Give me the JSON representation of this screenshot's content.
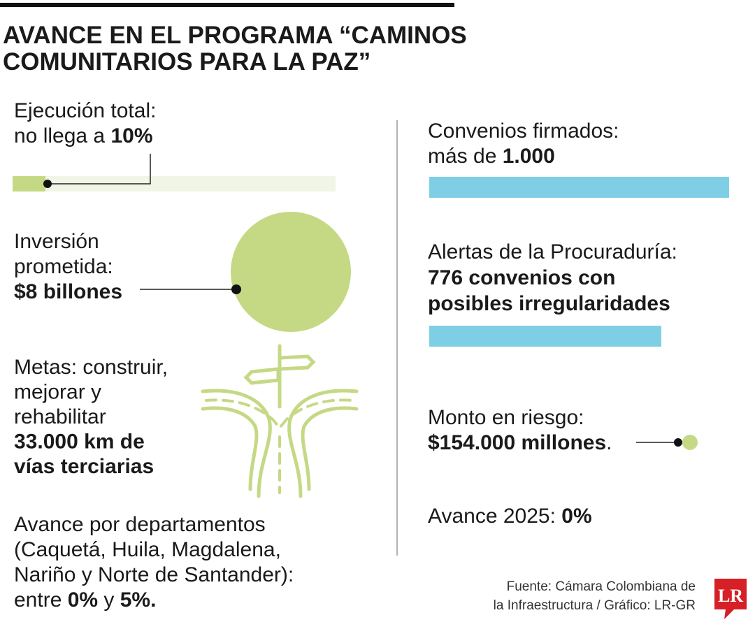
{
  "title": [
    "AVANCE EN EL PROGRAMA “CAMINOS",
    "COMUNITARIOS PARA LA PAZ”"
  ],
  "blocks": [
    {
      "lines": [
        [
          {
            "text": "Ejecución total:"
          }
        ],
        [
          {
            "text": "no llega a "
          },
          {
            "text": "10%",
            "bold": true
          }
        ]
      ]
    },
    {
      "lines": [
        [
          {
            "text": "Inversión"
          }
        ],
        [
          {
            "text": "prometida:"
          }
        ],
        [
          {
            "text": "$8 billones",
            "bold": true
          }
        ]
      ]
    },
    {
      "lines": [
        [
          {
            "text": "Metas: construir,"
          }
        ],
        [
          {
            "text": "mejorar y"
          }
        ],
        [
          {
            "text": "rehabilitar"
          }
        ],
        [
          {
            "text": "33.000 km de",
            "bold": true
          }
        ],
        [
          {
            "text": "vías terciarias",
            "bold": true
          }
        ]
      ]
    },
    {
      "lines": [
        [
          {
            "text": "Avance por departamentos"
          }
        ],
        [
          {
            "text": "(Caquetá, Huila, Magdalena,"
          }
        ],
        [
          {
            "text": "Nariño y Norte de Santander):"
          }
        ],
        [
          {
            "text": "entre "
          },
          {
            "text": "0%",
            "bold": true
          },
          {
            "text": " y "
          },
          {
            "text": "5%.",
            "bold": true
          }
        ]
      ]
    },
    {
      "lines": [
        [
          {
            "text": "Convenios firmados:"
          }
        ],
        [
          {
            "text": "más de "
          },
          {
            "text": "1.000",
            "bold": true
          }
        ]
      ]
    },
    {
      "lines": [
        [
          {
            "text": "Alertas de la Procuraduría:"
          }
        ],
        [
          {
            "text": "776 convenios con",
            "bold": true
          }
        ],
        [
          {
            "text": "posibles irregularidades",
            "bold": true
          }
        ]
      ]
    },
    {
      "lines": [
        [
          {
            "text": "Monto en riesgo:"
          }
        ],
        [
          {
            "text": "$154.000 millones",
            "bold": true
          },
          {
            "text": "."
          }
        ]
      ]
    },
    {
      "lines": [
        [
          {
            "text": "Avance 2025: "
          },
          {
            "text": "0%",
            "bold": true
          }
        ]
      ]
    }
  ],
  "source": [
    "Fuente: Cámara Colombiana de",
    "la Infraestructura / Gráfico: LR-GR"
  ],
  "logo": "LR"
}
